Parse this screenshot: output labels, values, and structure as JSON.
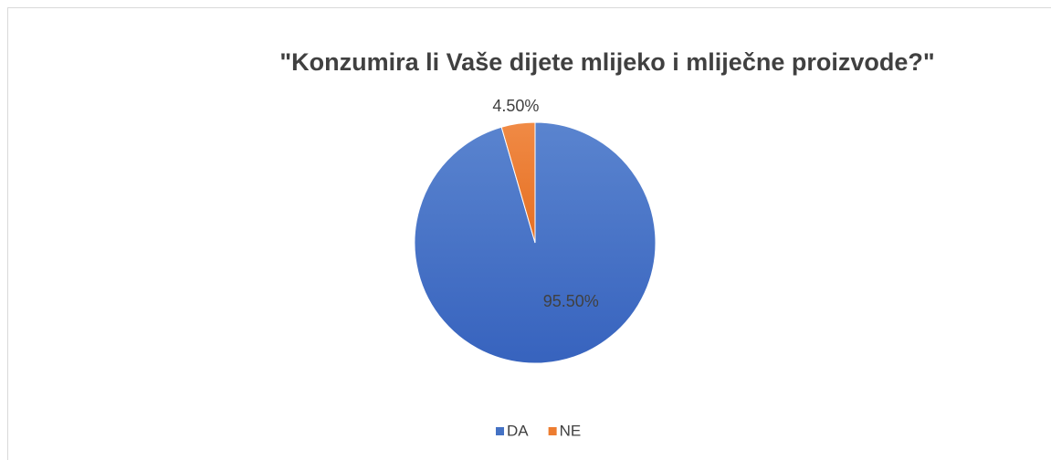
{
  "chart_data": {
    "type": "pie",
    "title": "\"Konzumira li Vaše dijete mlijeko i mliječne proizvode?\"",
    "categories": [
      "DA",
      "NE"
    ],
    "values": [
      95.5,
      4.5
    ],
    "value_labels": [
      "95.50%",
      "4.50%"
    ],
    "colors": [
      "#4472c4",
      "#ed7d31"
    ],
    "legend": "bottom"
  }
}
